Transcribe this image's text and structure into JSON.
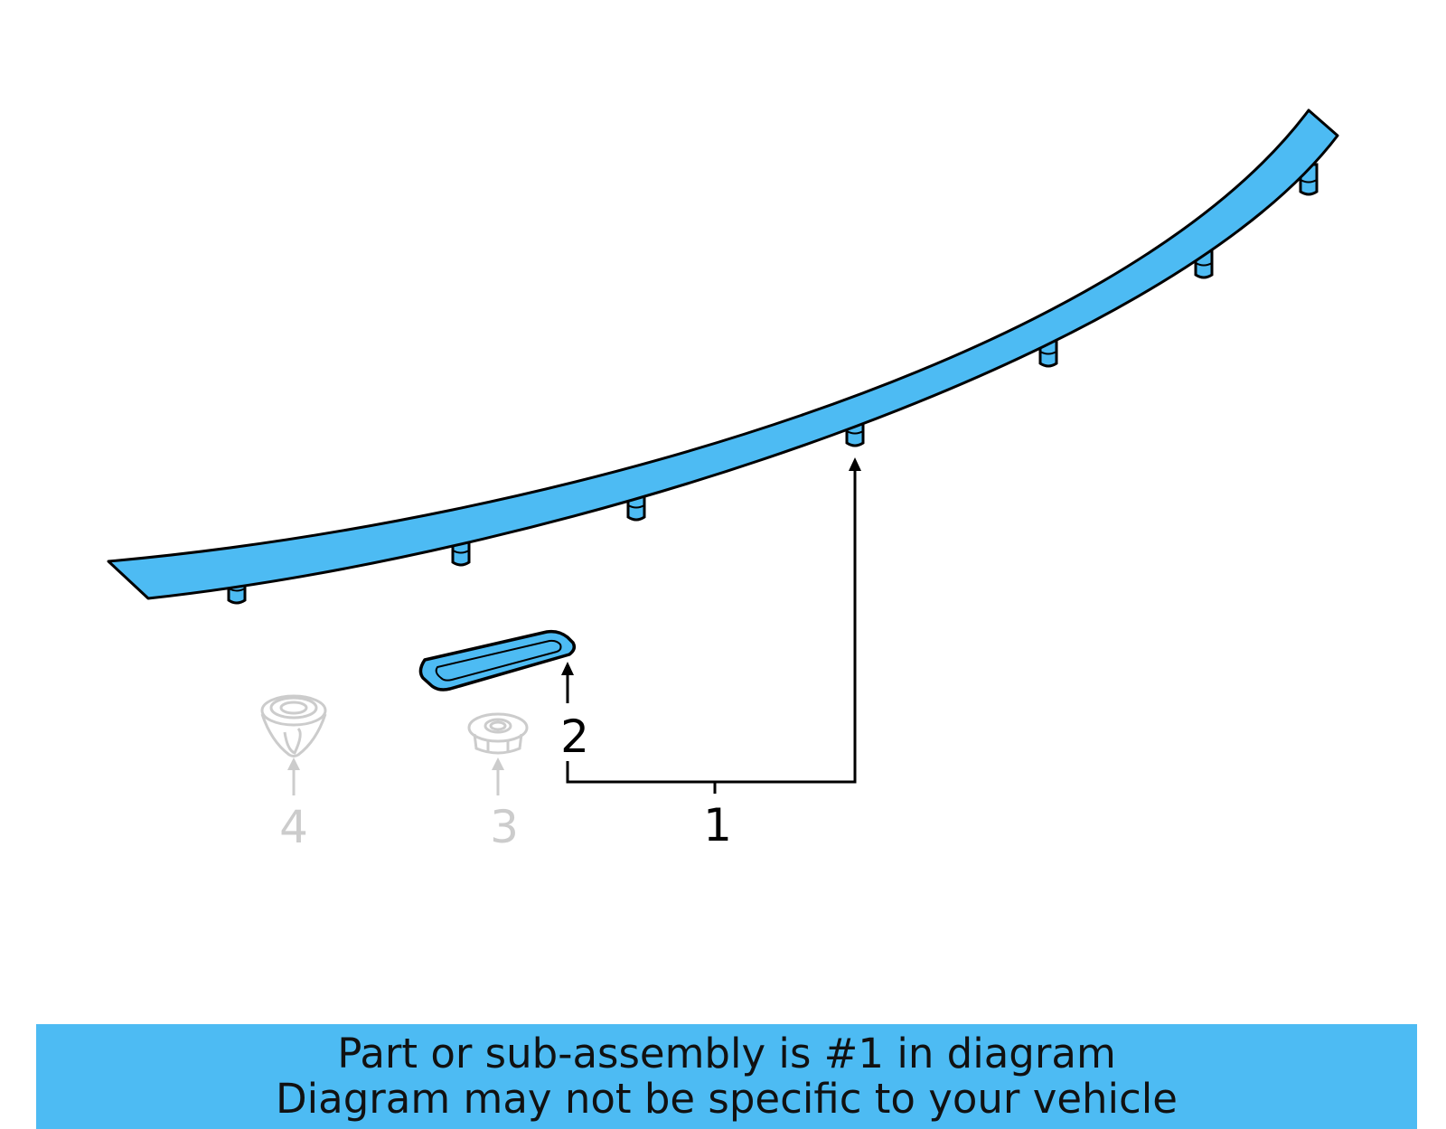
{
  "colors": {
    "part_fill": "#4dbbf3",
    "outline": "#000000",
    "ghost": "#cccccc",
    "banner": "#4dbbf3"
  },
  "callouts": {
    "part1": "1",
    "part2": "2",
    "part3": "3",
    "part4": "4"
  },
  "banner": {
    "line1": "Part or sub-assembly is #1 in diagram",
    "line2": "Diagram may not be specific to your vehicle"
  }
}
